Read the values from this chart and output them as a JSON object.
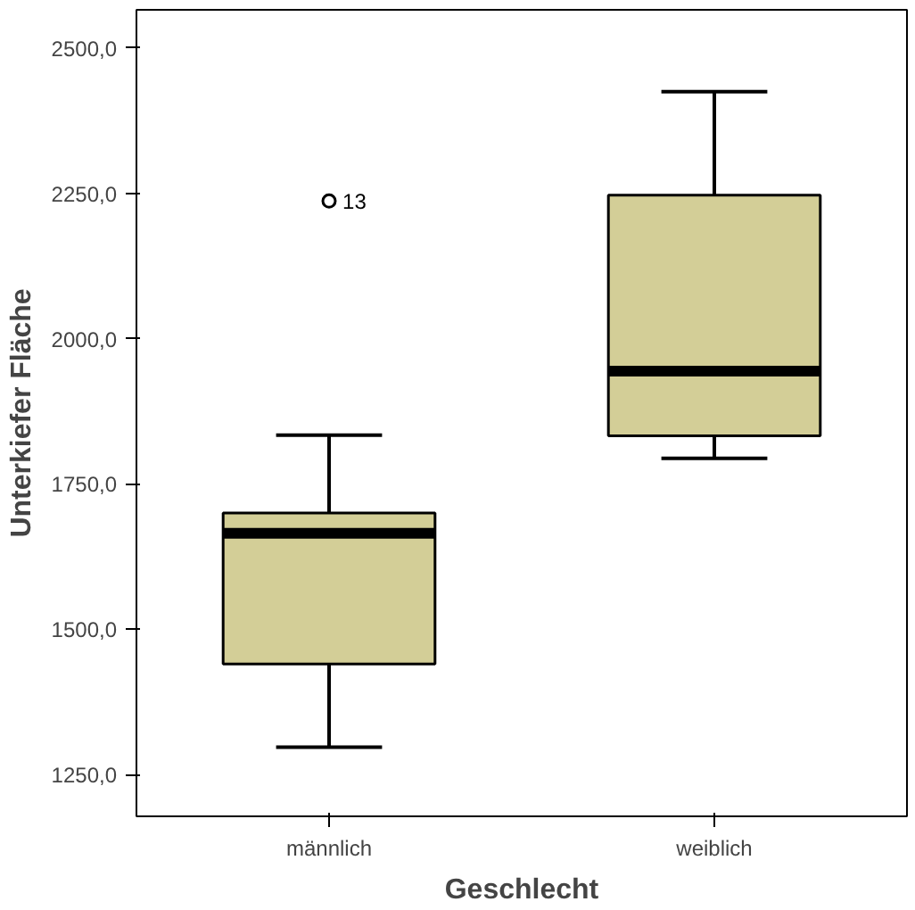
{
  "chart_data": {
    "type": "box",
    "xlabel": "Geschlecht",
    "ylabel": "Unterkiefer Fläche",
    "categories": [
      "männlich",
      "weiblich"
    ],
    "boxes": [
      {
        "low": 1297,
        "q1": 1440,
        "median": 1665,
        "q3": 1700,
        "high": 1834,
        "outliers": [
          2237
        ]
      },
      {
        "low": 1794,
        "q1": 1833,
        "median": 1944,
        "q3": 2247,
        "high": 2425
      }
    ],
    "color": "#d3ce97",
    "annotations": [
      "13"
    ],
    "ylim": [
      1178,
      2566
    ],
    "yticks": [
      {
        "value": 1250,
        "label": "1250,0"
      },
      {
        "value": 1500,
        "label": "1500,0"
      },
      {
        "value": 1750,
        "label": "1750,0"
      },
      {
        "value": 2000,
        "label": "2000,0"
      },
      {
        "value": 2250,
        "label": "2250,0"
      },
      {
        "value": 2500,
        "label": "2500,0"
      }
    ],
    "grid": false
  }
}
